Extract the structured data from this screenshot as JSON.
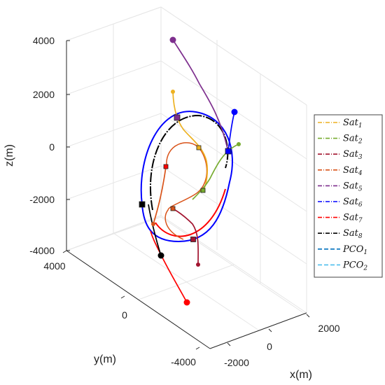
{
  "chart_data": {
    "type": "line3d",
    "xlabel": "x(m)",
    "ylabel": "y(m)",
    "zlabel": "z(m)",
    "xticks": [
      "-2000",
      "0",
      "2000"
    ],
    "yticks": [
      "4000",
      "0",
      "-4000"
    ],
    "zticks": [
      "4000",
      "2000",
      "0",
      "-2000",
      "-4000"
    ],
    "xlim": [
      -2500,
      2500
    ],
    "ylim": [
      -4500,
      4500
    ],
    "zlim": [
      -4500,
      4500
    ],
    "grid": true,
    "legend_position": "right",
    "legend": [
      {
        "base": "Sat",
        "sub": "1",
        "color": "#edb120",
        "dash": "6,2,1,2"
      },
      {
        "base": "Sat",
        "sub": "2",
        "color": "#77ac30",
        "dash": "6,2,1,2"
      },
      {
        "base": "Sat",
        "sub": "3",
        "color": "#a2142f",
        "dash": "6,2,1,2"
      },
      {
        "base": "Sat",
        "sub": "4",
        "color": "#d95319",
        "dash": "6,2,1,2"
      },
      {
        "base": "Sat",
        "sub": "5",
        "color": "#7e2f8e",
        "dash": "6,2,1,2"
      },
      {
        "base": "Sat",
        "sub": "6",
        "color": "#0000ff",
        "dash": "6,2,1,2"
      },
      {
        "base": "Sat",
        "sub": "7",
        "color": "#ff0000",
        "dash": "6,2,1,2"
      },
      {
        "base": "Sat",
        "sub": "8",
        "color": "#000000",
        "dash": "6,2,1,2"
      },
      {
        "base": "PCO",
        "sub": "1",
        "color": "#0072bd",
        "dash": "6,3"
      },
      {
        "base": "PCO",
        "sub": "2",
        "color": "#4dbeee",
        "dash": "6,3"
      }
    ],
    "series": [
      {
        "color": "#edb120",
        "start_z": 2000,
        "end_z": 0
      },
      {
        "color": "#77ac30",
        "start_z": 0,
        "end_z": -1700
      },
      {
        "color": "#a2142f",
        "start_z": -4200,
        "end_z": -1700
      },
      {
        "color": "#d95319",
        "start_z": -3000,
        "end_z": -700
      },
      {
        "color": "#7e2f8e",
        "start_z": 4000,
        "end_z": 1100
      },
      {
        "color": "#0000ff",
        "start_z": 1300,
        "end_z": -300
      },
      {
        "color": "#ff0000",
        "start_z": -5500,
        "end_z": -3500
      },
      {
        "color": "#000000",
        "start_z": -4000,
        "end_z": -2200
      }
    ]
  }
}
